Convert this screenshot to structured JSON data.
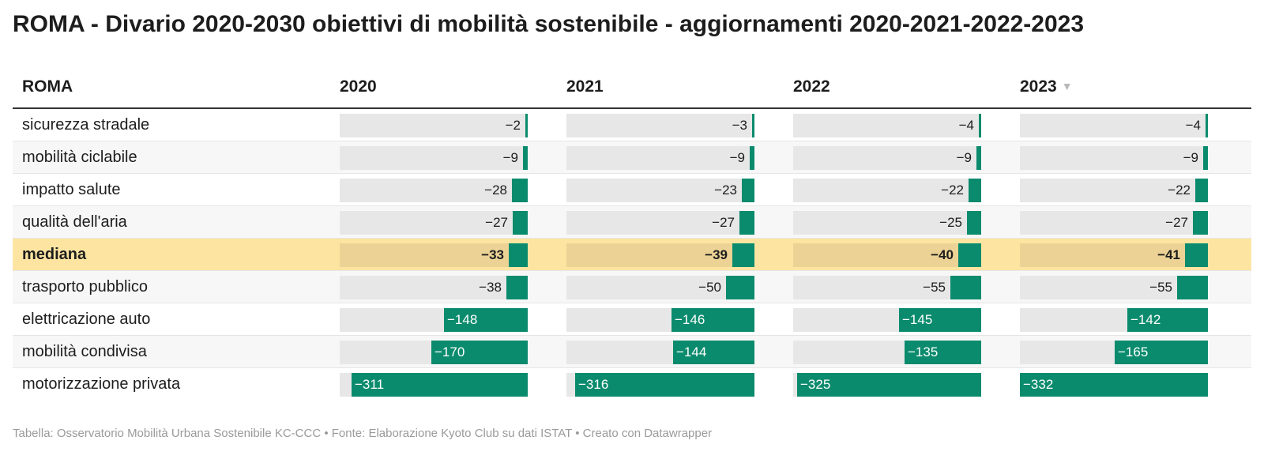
{
  "title": "ROMA - Divario 2020-2030 obiettivi di mobilità sostenibile - aggiornamenti 2020-2021-2022-2023",
  "footer": "Tabella: Osservatorio Mobilità Urbana Sostenibile KC-CCC • Fonte: Elaborazione Kyoto Club su dati ISTAT • Creato con Datawrapper",
  "header": {
    "row_label": "ROMA",
    "columns": [
      "2020",
      "2021",
      "2022",
      "2023"
    ],
    "sort_icon": "sort-descending-icon"
  },
  "colors": {
    "bar": "#0b8b6d",
    "bar_track": "#e7e7e7",
    "highlight_row": "#fde5a1"
  },
  "chart_data": {
    "type": "table",
    "bar_max": 332,
    "highlight_row": "mediana",
    "columns": [
      "2020",
      "2021",
      "2022",
      "2023"
    ],
    "rows": [
      {
        "label": "sicurezza stradale",
        "values": [
          -2,
          -3,
          -4,
          -4
        ],
        "display": [
          "−2",
          "−3",
          "−4",
          "−4"
        ]
      },
      {
        "label": "mobilità ciclabile",
        "values": [
          -9,
          -9,
          -9,
          -9
        ],
        "display": [
          "−9",
          "−9",
          "−9",
          "−9"
        ]
      },
      {
        "label": "impatto salute",
        "values": [
          -28,
          -23,
          -22,
          -22
        ],
        "display": [
          "−28",
          "−23",
          "−22",
          "−22"
        ]
      },
      {
        "label": "qualità dell'aria",
        "values": [
          -27,
          -27,
          -25,
          -27
        ],
        "display": [
          "−27",
          "−27",
          "−25",
          "−27"
        ]
      },
      {
        "label": "mediana",
        "values": [
          -33,
          -39,
          -40,
          -41
        ],
        "display": [
          "−33",
          "−39",
          "−40",
          "−41"
        ]
      },
      {
        "label": "trasporto pubblico",
        "values": [
          -38,
          -50,
          -55,
          -55
        ],
        "display": [
          "−38",
          "−50",
          "−55",
          "−55"
        ]
      },
      {
        "label": "elettricazione auto",
        "values": [
          -148,
          -146,
          -145,
          -142
        ],
        "display": [
          "−148",
          "−146",
          "−145",
          "−142"
        ]
      },
      {
        "label": "mobilità condivisa",
        "values": [
          -170,
          -144,
          -135,
          -165
        ],
        "display": [
          "−170",
          "−144",
          "−135",
          "−165"
        ]
      },
      {
        "label": "motorizzazione privata",
        "values": [
          -311,
          -316,
          -325,
          -332
        ],
        "display": [
          "−311",
          "−316",
          "−325",
          "−332"
        ]
      }
    ]
  }
}
